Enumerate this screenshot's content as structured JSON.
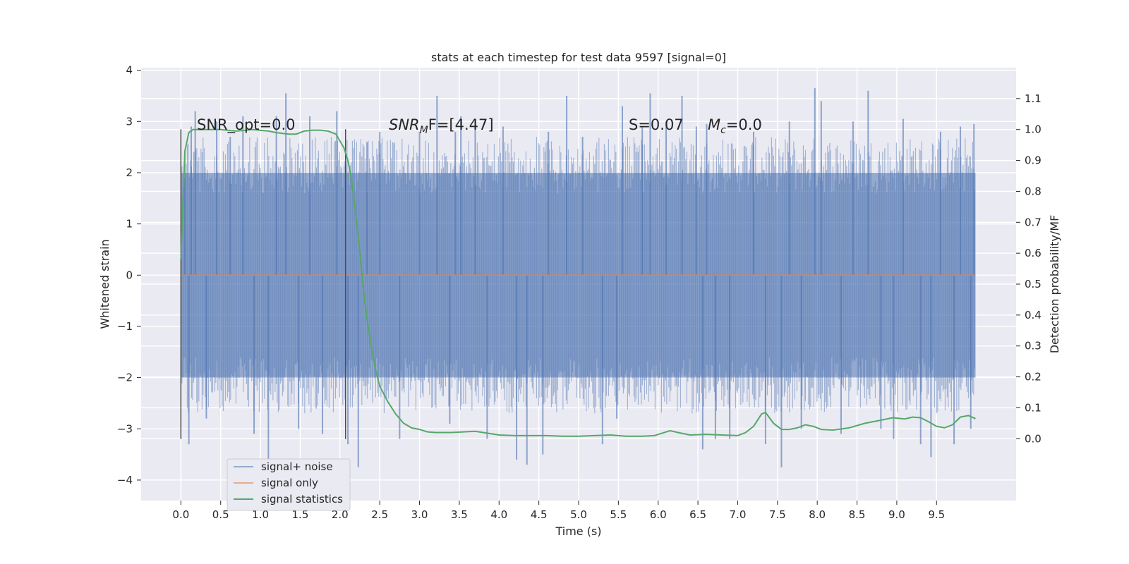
{
  "chart_data": {
    "type": "line",
    "title": "stats at each timestep for test data 9597 [signal=0]",
    "xlabel": "Time (s)",
    "ylabel_left": "Whitened strain",
    "ylabel_right": "Detection probability/MF",
    "xlim": [
      -0.5,
      10.5
    ],
    "ylim_left": [
      -4.4,
      4.05
    ],
    "ylim_right": [
      -0.2,
      1.2
    ],
    "x_ticks": [
      "0.0",
      "0.5",
      "1.0",
      "1.5",
      "2.0",
      "2.5",
      "3.0",
      "3.5",
      "4.0",
      "4.5",
      "5.0",
      "5.5",
      "6.0",
      "6.5",
      "7.0",
      "7.5",
      "8.0",
      "8.5",
      "9.0",
      "9.5"
    ],
    "y_left_ticks": [
      "4",
      "3",
      "2",
      "1",
      "0",
      "−1",
      "−2",
      "−3",
      "−4"
    ],
    "y_right_ticks": [
      "1.1",
      "1.0",
      "0.9",
      "0.8",
      "0.7",
      "0.6",
      "0.5",
      "0.4",
      "0.3",
      "0.2",
      "0.1",
      "0.0"
    ],
    "grid": true,
    "legend_position": "lower-left",
    "annotations": {
      "snr_opt": "SNR_opt=0.0",
      "snr_mf_main": "SNR",
      "snr_mf_sub": "M",
      "snr_mf_tail": "F=[4.47]",
      "s_stat": "S=0.07",
      "mc_main": "M",
      "mc_sub": "c",
      "mc_tail": "=0.0"
    },
    "vertical_markers_x": [
      0.0,
      2.07
    ],
    "series": [
      {
        "name": "signal+ noise",
        "axis": "left",
        "color": "#4c72b0",
        "x_range": [
          0.0,
          9.99
        ],
        "typical_envelope": [
          -2.0,
          2.0
        ],
        "peak_samples": [
          {
            "x": 0.05,
            "y": 1.9
          },
          {
            "x": 0.1,
            "y": -3.3
          },
          {
            "x": 0.13,
            "y": 2.9
          },
          {
            "x": 0.18,
            "y": 3.2
          },
          {
            "x": 0.32,
            "y": -2.8
          },
          {
            "x": 0.45,
            "y": 3.0
          },
          {
            "x": 0.62,
            "y": 2.7
          },
          {
            "x": 0.78,
            "y": 3.1
          },
          {
            "x": 0.92,
            "y": -3.1
          },
          {
            "x": 1.1,
            "y": -3.7
          },
          {
            "x": 1.2,
            "y": 3.1
          },
          {
            "x": 1.32,
            "y": 3.55
          },
          {
            "x": 1.48,
            "y": -3.0
          },
          {
            "x": 1.62,
            "y": 3.1
          },
          {
            "x": 1.78,
            "y": -3.1
          },
          {
            "x": 1.96,
            "y": 3.2
          },
          {
            "x": 2.1,
            "y": -3.3
          },
          {
            "x": 2.23,
            "y": -3.75
          },
          {
            "x": 2.34,
            "y": 2.6
          },
          {
            "x": 2.5,
            "y": 2.8
          },
          {
            "x": 2.75,
            "y": -3.2
          },
          {
            "x": 3.0,
            "y": 2.8
          },
          {
            "x": 3.22,
            "y": 3.5
          },
          {
            "x": 3.38,
            "y": -2.9
          },
          {
            "x": 3.45,
            "y": 2.8
          },
          {
            "x": 3.52,
            "y": 3.1
          },
          {
            "x": 3.7,
            "y": 3.0
          },
          {
            "x": 3.85,
            "y": -3.2
          },
          {
            "x": 4.05,
            "y": 2.9
          },
          {
            "x": 4.22,
            "y": -3.6
          },
          {
            "x": 4.35,
            "y": -3.7
          },
          {
            "x": 4.55,
            "y": -3.5
          },
          {
            "x": 4.62,
            "y": 2.8
          },
          {
            "x": 4.85,
            "y": 3.5
          },
          {
            "x": 5.05,
            "y": 2.7
          },
          {
            "x": 5.3,
            "y": -3.3
          },
          {
            "x": 5.48,
            "y": -2.8
          },
          {
            "x": 5.55,
            "y": 3.3
          },
          {
            "x": 5.8,
            "y": 2.9
          },
          {
            "x": 5.9,
            "y": 3.55
          },
          {
            "x": 6.1,
            "y": 3.0
          },
          {
            "x": 6.3,
            "y": 3.5
          },
          {
            "x": 6.48,
            "y": 2.9
          },
          {
            "x": 6.56,
            "y": -3.4
          },
          {
            "x": 6.61,
            "y": 2.95
          },
          {
            "x": 6.72,
            "y": -3.2
          },
          {
            "x": 6.9,
            "y": -3.2
          },
          {
            "x": 7.2,
            "y": 2.8
          },
          {
            "x": 7.35,
            "y": -3.3
          },
          {
            "x": 7.55,
            "y": -3.75
          },
          {
            "x": 7.65,
            "y": 3.0
          },
          {
            "x": 7.8,
            "y": -3.0
          },
          {
            "x": 7.97,
            "y": 3.65
          },
          {
            "x": 8.05,
            "y": 3.4
          },
          {
            "x": 8.3,
            "y": -3.1
          },
          {
            "x": 8.45,
            "y": 3.0
          },
          {
            "x": 8.64,
            "y": 3.6
          },
          {
            "x": 8.8,
            "y": -3.0
          },
          {
            "x": 8.96,
            "y": -3.2
          },
          {
            "x": 9.08,
            "y": 3.05
          },
          {
            "x": 9.3,
            "y": -3.3
          },
          {
            "x": 9.43,
            "y": -3.55
          },
          {
            "x": 9.55,
            "y": 2.8
          },
          {
            "x": 9.72,
            "y": -3.3
          },
          {
            "x": 9.8,
            "y": 2.9
          },
          {
            "x": 9.93,
            "y": -3.0
          },
          {
            "x": 9.97,
            "y": 2.95
          }
        ]
      },
      {
        "name": "signal only",
        "axis": "left",
        "color": "#dd8452",
        "x": [
          0.0,
          9.99
        ],
        "y": [
          0.0,
          0.0
        ]
      },
      {
        "name": "signal statistics",
        "axis": "right",
        "color": "#55a868",
        "x": [
          0.0,
          0.05,
          0.1,
          0.15,
          0.2,
          0.3,
          0.5,
          0.7,
          0.9,
          1.1,
          1.2,
          1.35,
          1.45,
          1.55,
          1.65,
          1.75,
          1.85,
          1.95,
          2.05,
          2.1,
          2.15,
          2.2,
          2.25,
          2.3,
          2.35,
          2.4,
          2.45,
          2.5,
          2.6,
          2.7,
          2.8,
          2.9,
          3.0,
          3.1,
          3.2,
          3.4,
          3.55,
          3.7,
          3.85,
          4.0,
          4.2,
          4.4,
          4.6,
          4.8,
          5.0,
          5.2,
          5.4,
          5.6,
          5.8,
          5.95,
          6.05,
          6.15,
          6.25,
          6.4,
          6.6,
          6.8,
          7.0,
          7.1,
          7.2,
          7.3,
          7.35,
          7.45,
          7.55,
          7.65,
          7.75,
          7.85,
          7.95,
          8.05,
          8.2,
          8.4,
          8.6,
          8.8,
          8.95,
          9.1,
          9.2,
          9.3,
          9.4,
          9.5,
          9.6,
          9.7,
          9.8,
          9.9,
          9.99
        ],
        "y": [
          0.58,
          0.93,
          0.99,
          1.0,
          1.0,
          1.0,
          1.0,
          0.995,
          1.0,
          0.995,
          0.99,
          0.985,
          0.985,
          0.995,
          0.998,
          0.998,
          0.995,
          0.985,
          0.94,
          0.9,
          0.83,
          0.72,
          0.6,
          0.47,
          0.37,
          0.29,
          0.22,
          0.17,
          0.12,
          0.08,
          0.05,
          0.035,
          0.03,
          0.022,
          0.02,
          0.02,
          0.022,
          0.024,
          0.018,
          0.012,
          0.01,
          0.01,
          0.01,
          0.008,
          0.008,
          0.01,
          0.012,
          0.008,
          0.008,
          0.01,
          0.018,
          0.026,
          0.02,
          0.012,
          0.014,
          0.012,
          0.01,
          0.02,
          0.04,
          0.08,
          0.085,
          0.05,
          0.03,
          0.03,
          0.035,
          0.045,
          0.04,
          0.03,
          0.028,
          0.035,
          0.05,
          0.06,
          0.068,
          0.064,
          0.07,
          0.068,
          0.055,
          0.04,
          0.035,
          0.045,
          0.07,
          0.075,
          0.065
        ]
      }
    ]
  }
}
